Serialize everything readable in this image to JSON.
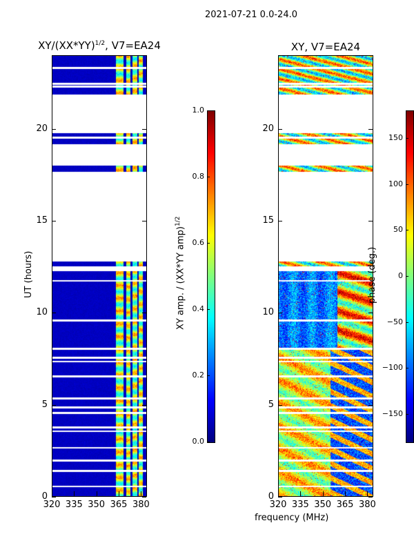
{
  "suptitle": "2021-07-21 0.0-24.0",
  "xlabel": "frequency (MHz)",
  "chart_data": [
    {
      "type": "heatmap",
      "title_main": "XY/(XX*YY)",
      "title_exp": "1/2",
      "title_suffix": ", V7=EA24",
      "ylabel": "UT (hours)",
      "xlim": [
        320,
        384
      ],
      "ylim": [
        0,
        24
      ],
      "xticks": [
        "320",
        "335",
        "350",
        "365",
        "380"
      ],
      "xtick_values": [
        320,
        335,
        350,
        365,
        380
      ],
      "yticks": [
        "0",
        "5",
        "10",
        "15",
        "20"
      ],
      "ytick_values": [
        0,
        5,
        10,
        15,
        20
      ],
      "colormap": "jet",
      "colorbar": {
        "label_main": "XY amp. / (XX*YY amp)",
        "label_exp": "1/2",
        "range": [
          0.0,
          1.0
        ],
        "ticks": [
          "0.0",
          "0.2",
          "0.4",
          "0.6",
          "0.8",
          "1.0"
        ],
        "tick_values": [
          0.0,
          0.2,
          0.4,
          0.6,
          0.8,
          1.0
        ]
      },
      "bright_channels_mhz": [
        [
          363,
          368
        ],
        [
          370,
          373
        ],
        [
          374.5,
          377.5
        ],
        [
          378.5,
          381.5
        ]
      ],
      "background_value": 0.05
    },
    {
      "type": "heatmap",
      "title": "XY, V7=EA24",
      "xlim": [
        320,
        384
      ],
      "ylim": [
        0,
        24
      ],
      "xticks": [
        "320",
        "335",
        "350",
        "365",
        "380"
      ],
      "xtick_values": [
        320,
        335,
        350,
        365,
        380
      ],
      "yticks": [
        "0",
        "5",
        "10",
        "15",
        "20"
      ],
      "ytick_values": [
        0,
        5,
        10,
        15,
        20
      ],
      "colormap": "jet",
      "colorbar": {
        "label": "phase (deg.)",
        "range": [
          -180,
          180
        ],
        "ticks": [
          "−150",
          "−100",
          "−50",
          "0",
          "50",
          "100",
          "150"
        ],
        "tick_values": [
          -150,
          -100,
          -50,
          0,
          50,
          100,
          150
        ]
      }
    }
  ],
  "flagged_hours": [
    [
      21.9,
      19.8
    ],
    [
      19.2,
      18.05
    ],
    [
      17.7,
      12.8
    ],
    [
      12.55,
      12.3
    ]
  ],
  "flagged_lines_hours": [
    23.35,
    22.5,
    22.35,
    19.55,
    11.75,
    9.6,
    8.05,
    7.55,
    7.35,
    6.55,
    5.35,
    4.85,
    4.55,
    3.75,
    3.55,
    2.65,
    1.95,
    1.4,
    0.55
  ]
}
